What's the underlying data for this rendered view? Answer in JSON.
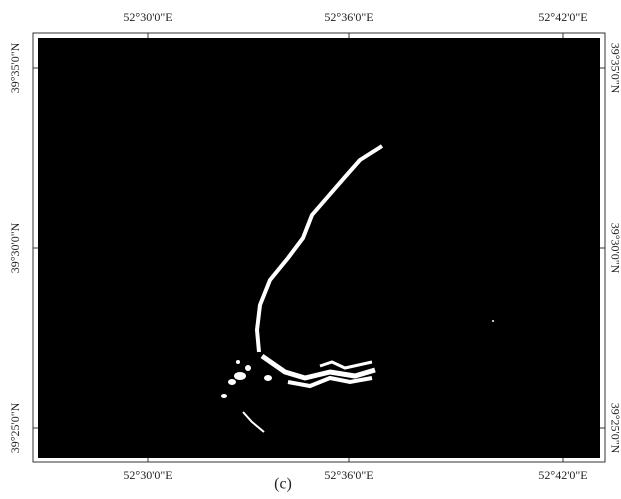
{
  "map": {
    "longitude_labels": [
      "52°30'0\"E",
      "52°36'0\"E",
      "52°42'0\"E"
    ],
    "latitude_labels": [
      "39°35'0\"N",
      "39°30'0\"N",
      "39°25'0\"N"
    ],
    "caption": "(c)"
  }
}
